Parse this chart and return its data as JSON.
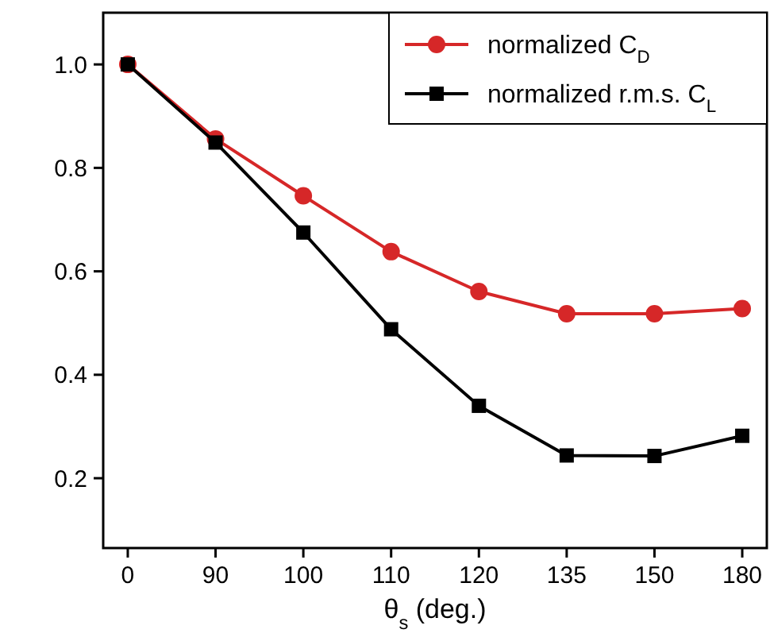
{
  "chart_data": {
    "type": "line",
    "xlabel": "θ$_{s}$ (deg.)",
    "categories": [
      "0",
      "90",
      "100",
      "110",
      "120",
      "135",
      "150",
      "180"
    ],
    "series": [
      {
        "name": "normalized C$_{D}$",
        "color": "#d62728",
        "marker": "circle",
        "values": [
          1.0,
          0.856,
          0.746,
          0.638,
          0.561,
          0.518,
          0.518,
          0.528
        ]
      },
      {
        "name": "normalized r.m.s. C$_{L}$",
        "color": "#000000",
        "marker": "square",
        "values": [
          1.0,
          0.849,
          0.675,
          0.488,
          0.34,
          0.244,
          0.243,
          0.282
        ]
      }
    ],
    "ylim": [
      0.065,
      1.1
    ],
    "yticks": [
      0.2,
      0.4,
      0.6,
      0.8,
      {
        "value": 1.0,
        "label": "1.0"
      }
    ],
    "grid": false,
    "legend": "top right",
    "line_style": "solid"
  }
}
